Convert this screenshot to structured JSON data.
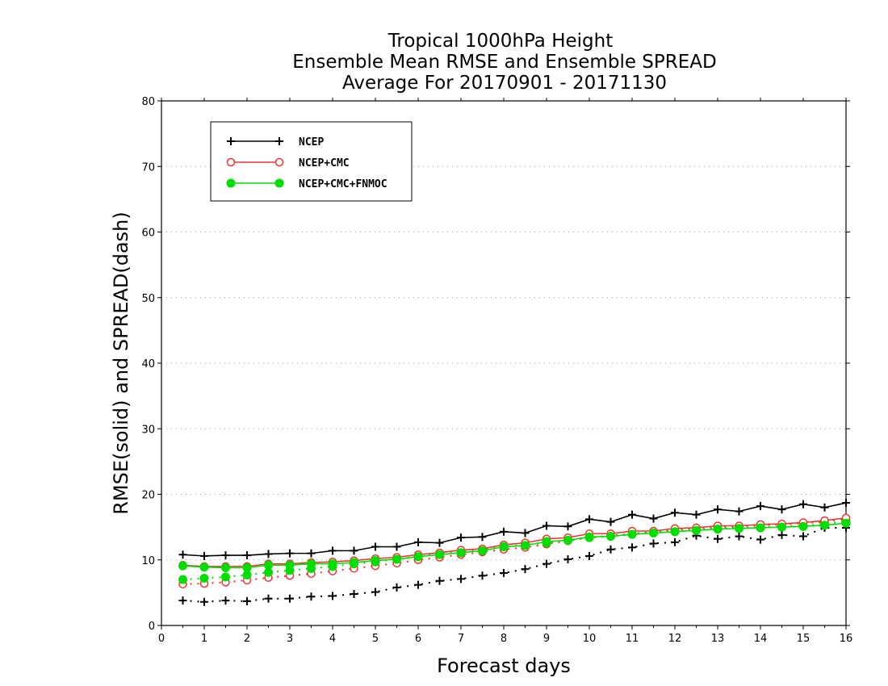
{
  "chart_data": {
    "type": "line",
    "title": [
      "Tropical 1000hPa Height",
      "Ensemble Mean RMSE and Ensemble SPREAD",
      "Average For 20170901 - 20171130"
    ],
    "xlabel": "Forecast days",
    "ylabel": "RMSE(solid) and SPREAD(dash)",
    "xlim": [
      0,
      16
    ],
    "ylim": [
      0,
      80
    ],
    "xticks": [
      "0",
      "1",
      "2",
      "3",
      "4",
      "5",
      "6",
      "7",
      "8",
      "9",
      "10",
      "11",
      "12",
      "13",
      "14",
      "15",
      "16"
    ],
    "yticks": [
      "0",
      "10",
      "20",
      "30",
      "40",
      "50",
      "60",
      "70",
      "80"
    ],
    "grid": "horizontal dotted",
    "legend_position": "top-left",
    "x": [
      0.5,
      1,
      1.5,
      2,
      2.5,
      3,
      3.5,
      4,
      4.5,
      5,
      5.5,
      6,
      6.5,
      7,
      7.5,
      8,
      8.5,
      9,
      9.5,
      10,
      10.5,
      11,
      11.5,
      12,
      12.5,
      13,
      13.5,
      14,
      14.5,
      15,
      15.5,
      16
    ],
    "series": [
      {
        "name": "NCEP",
        "color": "#000000",
        "marker": "plus",
        "rmse": [
          10.8,
          10.6,
          10.7,
          10.7,
          10.9,
          11.0,
          11.0,
          11.4,
          11.4,
          12.0,
          12.0,
          12.7,
          12.6,
          13.4,
          13.5,
          14.3,
          14.1,
          15.2,
          15.1,
          16.2,
          15.8,
          16.9,
          16.3,
          17.2,
          16.9,
          17.7,
          17.4,
          18.2,
          17.7,
          18.5,
          18.0,
          18.7
        ],
        "spread": [
          3.8,
          3.6,
          3.8,
          3.7,
          4.1,
          4.1,
          4.4,
          4.5,
          4.8,
          5.1,
          5.8,
          6.2,
          6.8,
          7.1,
          7.6,
          8.0,
          8.6,
          9.4,
          10.1,
          10.6,
          11.6,
          11.9,
          12.5,
          12.7,
          13.7,
          13.2,
          13.6,
          13.1,
          13.8,
          13.6,
          14.9,
          14.9
        ]
      },
      {
        "name": "NCEP+CMC",
        "color": "#ee3333",
        "marker": "open-circle",
        "rmse": [
          9.2,
          9.0,
          9.0,
          9.0,
          9.4,
          9.4,
          9.6,
          9.7,
          9.9,
          10.2,
          10.4,
          10.8,
          11.1,
          11.5,
          11.7,
          12.3,
          12.6,
          13.2,
          13.4,
          14.0,
          14.0,
          14.4,
          14.4,
          14.8,
          14.9,
          15.2,
          15.2,
          15.4,
          15.5,
          15.7,
          16.0,
          16.4
        ],
        "spread": [
          6.3,
          6.4,
          6.6,
          6.9,
          7.3,
          7.6,
          7.9,
          8.3,
          8.7,
          9.1,
          9.5,
          10.0,
          10.4,
          10.8,
          11.2,
          11.6,
          11.9,
          12.4,
          12.9,
          13.4,
          13.7,
          14.0,
          14.3,
          14.6,
          14.8,
          15.0,
          15.1,
          15.3,
          15.4,
          15.6,
          15.8,
          16.3
        ]
      },
      {
        "name": "NCEP+CMC+FNMOC",
        "color": "#00dd00",
        "marker": "filled-circle",
        "rmse": [
          9.1,
          8.9,
          8.8,
          8.8,
          9.2,
          9.2,
          9.4,
          9.4,
          9.6,
          9.9,
          10.1,
          10.5,
          10.8,
          11.1,
          11.4,
          12.0,
          12.2,
          12.8,
          13.0,
          13.5,
          13.6,
          13.9,
          14.1,
          14.3,
          14.5,
          14.7,
          14.8,
          14.9,
          15.0,
          15.1,
          15.3,
          15.6
        ],
        "spread": [
          7.0,
          7.2,
          7.4,
          7.7,
          8.1,
          8.4,
          8.7,
          9.0,
          9.4,
          9.7,
          10.1,
          10.5,
          10.9,
          11.2,
          11.6,
          12.0,
          12.3,
          12.6,
          13.0,
          13.4,
          13.6,
          13.9,
          14.2,
          14.4,
          14.6,
          14.8,
          14.9,
          15.0,
          15.1,
          15.2,
          15.5,
          15.9
        ]
      }
    ]
  }
}
